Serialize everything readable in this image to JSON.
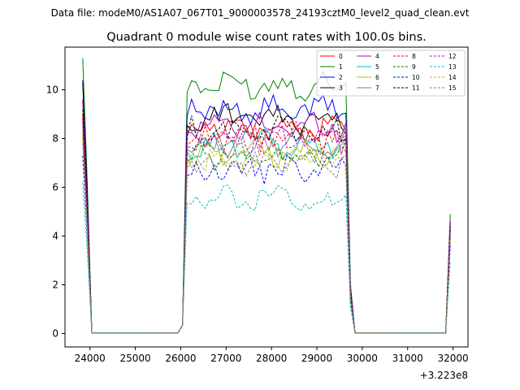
{
  "chart_data": {
    "type": "line",
    "suptitle": "Data file: modeM0/AS1A07_067T01_9000003578_24193cztM0_level2_quad_clean.evt",
    "title": "Quadrant 0 module wise count rates with 100.0s bins.",
    "xlabel": "",
    "ylabel": "",
    "x_offset_label": "+3.223e8",
    "xlim": [
      23450,
      32330
    ],
    "ylim": [
      -0.55,
      11.75
    ],
    "xticks": [
      24000,
      25000,
      26000,
      27000,
      28000,
      29000,
      30000,
      31000,
      32000
    ],
    "xtick_labels": [
      "24000",
      "25000",
      "26000",
      "27000",
      "28000",
      "29000",
      "30000",
      "31000",
      "32000"
    ],
    "yticks": [
      0,
      2,
      4,
      6,
      8,
      10
    ],
    "ytick_labels": [
      "0",
      "2",
      "4",
      "6",
      "8",
      "10"
    ],
    "grid": false,
    "legend_position": "top-right",
    "segments": [
      {
        "x_start": 23840,
        "x_end": 24040,
        "step": 100,
        "base_start": 1,
        "base_end": 0
      },
      {
        "x_start": 24140,
        "x_end": 25940,
        "step": 100,
        "base_start": 0,
        "base_end": 0
      },
      {
        "x_start": 26040,
        "x_end": 29740,
        "step": 100,
        "base_start": 1,
        "base_end": 1
      },
      {
        "x_start": 29840,
        "x_end": 31740,
        "step": 100,
        "base_start": 0,
        "base_end": 0
      },
      {
        "x_start": 31840,
        "x_end": 31940,
        "step": 100,
        "base_start": 0,
        "base_end": 1
      }
    ],
    "series": [
      {
        "name": "0",
        "color": "#ff0000",
        "dashed": false,
        "start": 9.0,
        "level": 8.4,
        "end": 4.4
      },
      {
        "name": "1",
        "color": "#008000",
        "dashed": false,
        "start": 11.3,
        "level": 10.2,
        "end": 4.9
      },
      {
        "name": "2",
        "color": "#0000ff",
        "dashed": false,
        "start": 10.4,
        "level": 9.2,
        "end": 4.6
      },
      {
        "name": "3",
        "color": "#000000",
        "dashed": false,
        "start": 10.3,
        "level": 8.8,
        "end": 4.5
      },
      {
        "name": "4",
        "color": "#bf00bf",
        "dashed": false,
        "start": 9.6,
        "level": 8.5,
        "end": 4.6
      },
      {
        "name": "5",
        "color": "#00bfbf",
        "dashed": false,
        "start": 8.2,
        "level": 7.7,
        "end": 4.0
      },
      {
        "name": "6",
        "color": "#bfbf00",
        "dashed": false,
        "start": 8.3,
        "level": 7.4,
        "end": 4.0
      },
      {
        "name": "7",
        "color": "#808080",
        "dashed": false,
        "start": 8.7,
        "level": 7.8,
        "end": 4.2
      },
      {
        "name": "8",
        "color": "#ff0000",
        "dashed": true,
        "start": 8.8,
        "level": 8.0,
        "end": 4.3
      },
      {
        "name": "9",
        "color": "#008000",
        "dashed": true,
        "start": 8.0,
        "level": 7.3,
        "end": 3.9
      },
      {
        "name": "10",
        "color": "#0000ff",
        "dashed": true,
        "start": 7.3,
        "level": 6.7,
        "end": 3.6
      },
      {
        "name": "11",
        "color": "#000000",
        "dashed": true,
        "start": 9.2,
        "level": 8.3,
        "end": 4.4
      },
      {
        "name": "12",
        "color": "#bf00bf",
        "dashed": true,
        "start": 8.6,
        "level": 7.9,
        "end": 4.2
      },
      {
        "name": "13",
        "color": "#00bfbf",
        "dashed": true,
        "start": 6.2,
        "level": 5.5,
        "end": 3.0
      },
      {
        "name": "14",
        "color": "#bfbf00",
        "dashed": true,
        "start": 8.0,
        "level": 7.2,
        "end": 3.9
      },
      {
        "name": "15",
        "color": "#808080",
        "dashed": true,
        "start": 7.8,
        "level": 7.0,
        "end": 3.8
      }
    ]
  }
}
